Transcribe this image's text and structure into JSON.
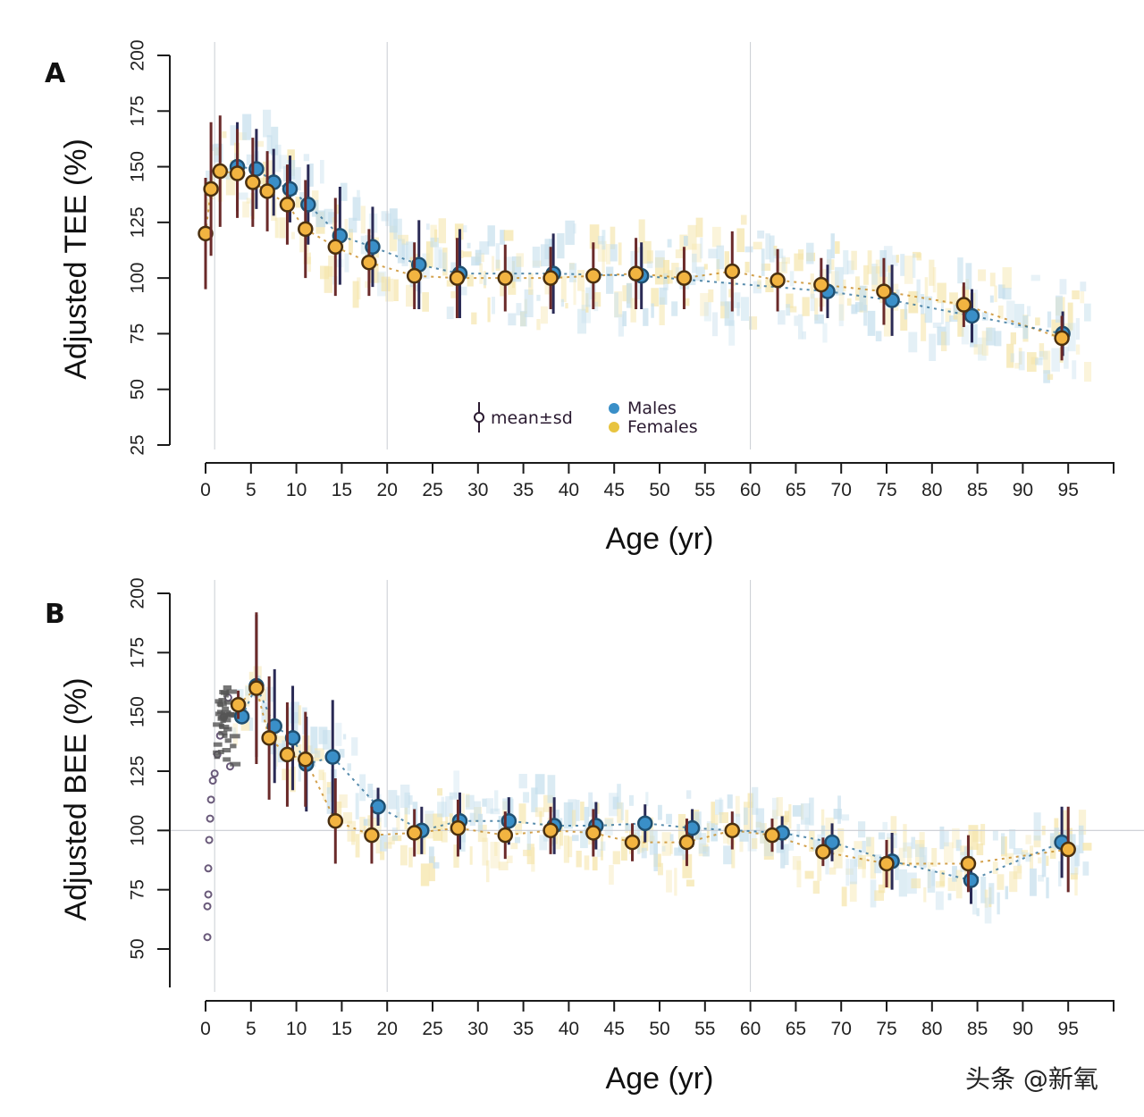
{
  "figure": {
    "watermark": "头条 @新氧",
    "colors": {
      "males": "#3a8fc8",
      "females": "#f2b441",
      "males_cloud": "#7fb8d6",
      "females_cloud": "#e8c440",
      "errorbar_male": "#2a2a55",
      "errorbar_female": "#6a2a2a",
      "marker_outline": "#4a3010"
    }
  },
  "chart_data": [
    {
      "panel": "A",
      "type": "scatter",
      "title": "",
      "xlabel": "Age (yr)",
      "ylabel": "Adjusted TEE (%)",
      "xlim": [
        0,
        100
      ],
      "ylim": [
        25,
        200
      ],
      "xticks": [
        "0",
        "5",
        "10",
        "15",
        "20",
        "25",
        "30",
        "35",
        "40",
        "45",
        "50",
        "55",
        "60",
        "65",
        "70",
        "75",
        "80",
        "85",
        "90",
        "95"
      ],
      "yticks": [
        "25",
        "50",
        "75",
        "100",
        "125",
        "150",
        "175",
        "200"
      ],
      "reference_lines_x": [
        1,
        20,
        60
      ],
      "reference_line_y": null,
      "legend": {
        "placement": "bottom-center",
        "errorbar_label": "mean±sd",
        "entries": [
          "Males",
          "Females"
        ]
      },
      "series": [
        {
          "name": "Females",
          "x": [
            0,
            0.6,
            1.6,
            3.5,
            5.2,
            6.8,
            9,
            11,
            14.3,
            18,
            23,
            27.7,
            33,
            38,
            42.7,
            47.4,
            52.7,
            58,
            63,
            67.8,
            74.7,
            83.5,
            94.3
          ],
          "y": [
            120,
            140,
            148,
            147,
            143,
            139,
            133,
            122,
            114,
            107,
            101,
            100,
            100,
            100,
            101,
            102,
            100,
            103,
            99,
            97,
            94,
            88,
            73
          ],
          "sd": [
            25,
            30,
            25,
            20,
            20,
            18,
            18,
            22,
            22,
            15,
            15,
            18,
            15,
            14,
            15,
            16,
            14,
            18,
            14,
            12,
            15,
            10,
            10
          ]
        },
        {
          "name": "Males",
          "x": [
            3.5,
            5.6,
            7.5,
            9.3,
            11.3,
            14.8,
            18.4,
            23.5,
            28,
            38.3,
            48,
            68.5,
            75.6,
            84.4,
            94.4
          ],
          "y": [
            150,
            149,
            143,
            140,
            133,
            119,
            114,
            106,
            102,
            102,
            101,
            94,
            90,
            83,
            75
          ],
          "sd": [
            20,
            18,
            15,
            15,
            18,
            22,
            18,
            20,
            20,
            18,
            15,
            12,
            16,
            12,
            10
          ]
        }
      ]
    },
    {
      "panel": "B",
      "type": "scatter",
      "title": "",
      "xlabel": "Age (yr)",
      "ylabel": "Adjusted BEE (%)",
      "xlim": [
        0,
        100
      ],
      "ylim": [
        35,
        200
      ],
      "xticks": [
        "0",
        "5",
        "10",
        "15",
        "20",
        "25",
        "30",
        "35",
        "40",
        "45",
        "50",
        "55",
        "60",
        "65",
        "70",
        "75",
        "80",
        "85",
        "90",
        "95"
      ],
      "yticks": [
        "50",
        "75",
        "100",
        "125",
        "150",
        "175",
        "200"
      ],
      "reference_lines_x": [
        1,
        20,
        60
      ],
      "reference_line_y": 100,
      "series": [
        {
          "name": "Females",
          "x": [
            3.6,
            5.6,
            7,
            9,
            11,
            14.3,
            18.3,
            23,
            27.8,
            33,
            38,
            42.7,
            47,
            53,
            58,
            62.4,
            68,
            75,
            84,
            95
          ],
          "y": [
            153,
            160,
            139,
            132,
            130,
            104,
            98,
            99,
            101,
            98,
            100,
            99,
            95,
            95,
            100,
            98,
            91,
            86,
            86,
            92
          ],
          "sd": [
            6,
            32,
            26,
            22,
            20,
            18,
            12,
            10,
            12,
            10,
            10,
            10,
            8,
            10,
            8,
            7,
            6,
            10,
            12,
            18
          ]
        },
        {
          "name": "Males",
          "x": [
            4,
            5.6,
            7.6,
            9.6,
            11.1,
            14,
            19,
            23.8,
            28,
            33.4,
            38.4,
            43,
            48.4,
            53.6,
            63.5,
            69,
            75.6,
            84.3,
            94.3
          ],
          "y": [
            148,
            161,
            144,
            139,
            128,
            131,
            110,
            100,
            104,
            104,
            102,
            102,
            103,
            101,
            99,
            95,
            87,
            79,
            95
          ],
          "sd": [
            0,
            30,
            24,
            22,
            20,
            24,
            8,
            10,
            12,
            10,
            12,
            10,
            8,
            8,
            7,
            8,
            12,
            10,
            15
          ]
        },
        {
          "name": "Infants (individual)",
          "x": [
            0.2,
            0.2,
            0.3,
            0.3,
            0.4,
            0.5,
            0.6,
            0.8,
            1.0,
            1.3,
            1.6,
            2.0,
            2.5,
            2.7
          ],
          "y": [
            55,
            68,
            73,
            84,
            96,
            105,
            113,
            121,
            124,
            132,
            140,
            148,
            156,
            127
          ]
        }
      ]
    }
  ]
}
